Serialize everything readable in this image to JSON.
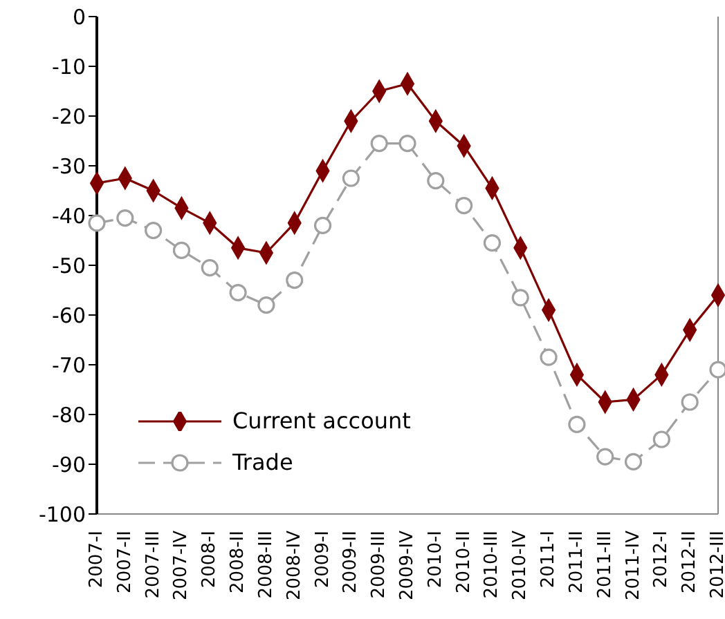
{
  "chart_data": {
    "type": "line",
    "categories": [
      "2007-I",
      "2007-II",
      "2007-III",
      "2007-IV",
      "2008-I",
      "2008-II",
      "2008-III",
      "2008-IV",
      "2009-I",
      "2009-II",
      "2009-III",
      "2009-IV",
      "2010-I",
      "2010-II",
      "2010-III",
      "2010-IV",
      "2011-I",
      "2011-II",
      "2011-III",
      "2011-IV",
      "2012-I",
      "2012-II",
      "2012-III"
    ],
    "series": [
      {
        "name": "Current account",
        "color": "#7f0000",
        "marker": "diamond",
        "line_style": "solid",
        "values": [
          -33.5,
          -32.5,
          -35,
          -38.5,
          -41.5,
          -46.5,
          -47.5,
          -41.5,
          -31,
          -21,
          -15,
          -13.5,
          -21,
          -26,
          -34.5,
          -46.5,
          -59,
          -72,
          -77.5,
          -77,
          -72,
          -63,
          -56
        ]
      },
      {
        "name": "Trade",
        "color": "#a0a0a0",
        "marker": "circle",
        "line_style": "dashed",
        "values": [
          -41.5,
          -40.5,
          -43,
          -47,
          -50.5,
          -55.5,
          -58,
          -53,
          -42,
          -32.5,
          -25.5,
          -25.5,
          -33,
          -38,
          -45.5,
          -56.5,
          -68.5,
          -82,
          -88.5,
          -89.5,
          -85,
          -77.5,
          -71
        ]
      }
    ],
    "ylim": [
      -100,
      0
    ],
    "yticks": [
      -100,
      -90,
      -80,
      -70,
      -60,
      -50,
      -40,
      -30,
      -20,
      -10,
      0
    ],
    "grid": false,
    "legend": "bottom left"
  }
}
